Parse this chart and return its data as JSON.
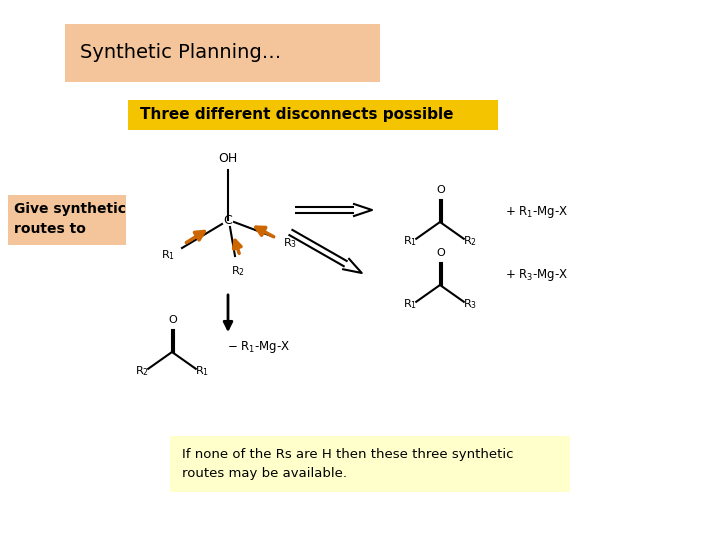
{
  "bg_color": "#ffffff",
  "title_text": "Synthetic Planning…",
  "title_box_color": "#f4c49a",
  "subtitle_text": "Three different disconnects possible",
  "subtitle_box_color": "#f5c400",
  "left_label_text": "Give synthetic\nroutes to",
  "left_label_box_color": "#f4c49a",
  "bottom_note_text": "If none of the Rs are H then these three synthetic\nroutes may be available.",
  "bottom_note_box_color": "#ffffcc",
  "arrow_color": "#cc6600",
  "black": "#000000"
}
